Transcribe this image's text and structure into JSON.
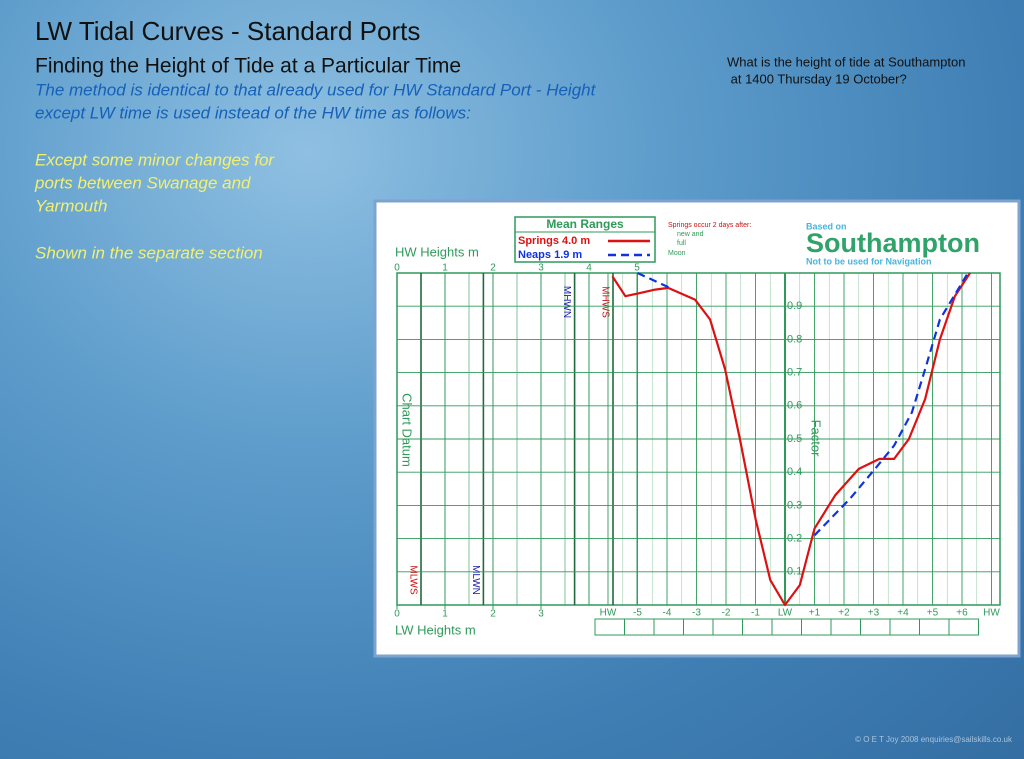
{
  "slide": {
    "title": "LW Tidal Curves - Standard Ports",
    "subtitle": "Finding the Height of Tide at a Particular Time",
    "intro": [
      "The method is identical to that already used for HW Standard Port - Height",
      "except LW time is used instead of the HW time as follows:"
    ],
    "note": [
      "Except some minor changes for",
      "ports between Swanage and",
      "Yarmouth"
    ],
    "note2": "Shown in the separate section",
    "question": [
      "What is the height of tide at Southampton",
      " at 1400 Thursday 19 October?"
    ],
    "copyright": "© O E T Joy 2008 enquiries@sailskills.co.uk"
  },
  "chart_data": {
    "type": "line",
    "pretitle": "Based on",
    "title": "Southampton",
    "subtitle": "Not to be used for Navigation",
    "legend_title": "Mean Ranges",
    "springs_note": {
      "title": "Springs occur 2 days after:",
      "lines": [
        "new and",
        "full",
        "Moon"
      ]
    },
    "hw_heights": {
      "label": "HW Heights m",
      "ticks": [
        0,
        1,
        2,
        3,
        4,
        5
      ],
      "marks": [
        {
          "label": "MHWN",
          "value": 3.7,
          "color": "#1a1aa8"
        },
        {
          "label": "MHWS",
          "value": 4.5,
          "color": "#cc1111"
        }
      ]
    },
    "lw_heights": {
      "label": "LW Heights m",
      "ticks": [
        0,
        1,
        2,
        3
      ],
      "marks": [
        {
          "label": "MLWS",
          "value": 0.5,
          "color": "#cc1111"
        },
        {
          "label": "MLWN",
          "value": 1.8,
          "color": "#1a1aa8"
        }
      ]
    },
    "datum_label": "Chart Datum",
    "ylabel": "Factor",
    "xlim": [
      -6,
      7
    ],
    "xticks": [
      {
        "value": -6,
        "label": "HW"
      },
      -5,
      -4,
      -3,
      -2,
      -1,
      {
        "value": 0,
        "label": "LW"
      },
      {
        "value": 1,
        "label": "+1"
      },
      {
        "value": 2,
        "label": "+2"
      },
      {
        "value": 3,
        "label": "+3"
      },
      {
        "value": 4,
        "label": "+4"
      },
      {
        "value": 5,
        "label": "+5"
      },
      {
        "value": 6,
        "label": "+6"
      },
      {
        "value": 7,
        "label": "HW"
      }
    ],
    "ylim": [
      0,
      1
    ],
    "yticks": [
      0.1,
      0.2,
      0.3,
      0.4,
      0.5,
      0.6,
      0.7,
      0.8,
      0.9
    ],
    "series": [
      {
        "name": "Springs 4.0 m",
        "color": "#dd1111",
        "dash": false,
        "x": [
          -5.85,
          -5.41,
          -4.9,
          -4.4,
          -3.96,
          -3.05,
          -2.54,
          -2.03,
          -1.53,
          -1.0,
          -0.5,
          0,
          0.5,
          1.0,
          1.7,
          2.5,
          3.2,
          3.7,
          4.2,
          4.75,
          5.25,
          5.76,
          6.27
        ],
        "values": [
          0.99,
          0.93,
          0.94,
          0.95,
          0.955,
          0.92,
          0.86,
          0.71,
          0.5,
          0.26,
          0.075,
          0,
          0.06,
          0.23,
          0.33,
          0.41,
          0.44,
          0.44,
          0.5,
          0.62,
          0.8,
          0.93,
          1.0
        ]
      },
      {
        "name": "Neaps 1.9 m",
        "color": "#1133dd",
        "dash": true,
        "x": [
          -5.0,
          -3.9,
          null,
          1.0,
          2.2,
          3.05,
          3.7,
          4.3,
          4.75,
          5.25,
          5.93,
          6.2
        ],
        "values": [
          1.0,
          0.955,
          null,
          0.21,
          0.32,
          0.41,
          0.48,
          0.58,
          0.71,
          0.86,
          0.96,
          1.0
        ]
      }
    ]
  }
}
